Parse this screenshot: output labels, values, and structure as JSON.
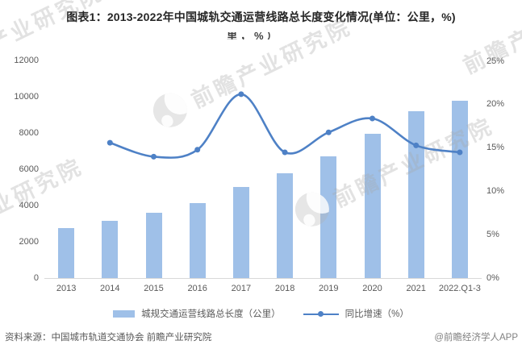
{
  "title": "图表1：2013-2022年中国城轨交通运营线路总长度变化情况(单位：公里，%)",
  "title_artifact": "里，%）",
  "chart_data": {
    "type": "bar",
    "combo": "bar+line",
    "title": "2013-2022年中国城轨交通运营线路总长度变化情况",
    "categories": [
      "2013",
      "2014",
      "2015",
      "2016",
      "2017",
      "2018",
      "2019",
      "2020",
      "2021",
      "2022.Q1-3"
    ],
    "series": [
      {
        "name": "城规交通运营线路总长度（公里）",
        "type": "bar",
        "axis": "left",
        "values": [
          2746,
          3173,
          3618,
          4153,
          5033,
          5761,
          6730,
          7970,
          9192,
          9788
        ]
      },
      {
        "name": "同比增速（%）",
        "type": "line",
        "axis": "right",
        "values": [
          null,
          15.6,
          14.0,
          14.8,
          21.2,
          14.5,
          16.8,
          18.4,
          15.3,
          14.5
        ]
      }
    ],
    "y_left": {
      "label": "公里",
      "min": 0,
      "max": 12000,
      "step": 2000
    },
    "y_right": {
      "label": "%",
      "min": 0,
      "max": 25,
      "step": 5,
      "suffix": "%"
    },
    "legend_position": "bottom",
    "grid": false,
    "colors": {
      "bar": "#9FC0E8",
      "line": "#4E81C6"
    }
  },
  "legend": {
    "bar_label": "城规交通运营线路总长度（公里）",
    "line_label": "同比增速（%）"
  },
  "footer": {
    "source": "资料来源：中国城市轨道交通协会 前瞻产业研究院",
    "credit": "@前瞻经济学人APP"
  },
  "watermark": {
    "text": "前瞻产业研究院"
  }
}
